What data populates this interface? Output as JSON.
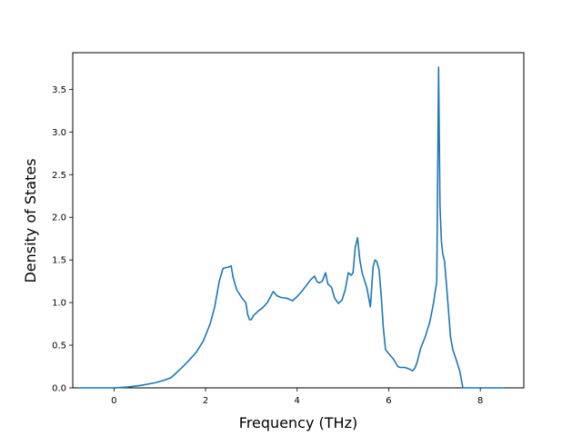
{
  "chart_data": {
    "type": "line",
    "title": "",
    "xlabel": "Frequency (THz)",
    "ylabel": "Density of States",
    "xlim": [
      -0.9,
      8.95
    ],
    "ylim": [
      0.0,
      3.93
    ],
    "xticks": [
      0,
      2,
      4,
      6,
      8
    ],
    "xtick_labels": [
      "0",
      "2",
      "4",
      "6",
      "8"
    ],
    "yticks": [
      0.0,
      0.5,
      1.0,
      1.5,
      2.0,
      2.5,
      3.0,
      3.5
    ],
    "ytick_labels": [
      "0.0",
      "0.5",
      "1.0",
      "1.5",
      "2.0",
      "2.5",
      "3.0",
      "3.5"
    ],
    "grid": false,
    "colors": {
      "series": "#1f77b4",
      "axes": "#000000"
    },
    "series": [
      {
        "x": [
          -0.77,
          0.0,
          0.3,
          0.6,
          0.9,
          1.1,
          1.25,
          1.35,
          1.45,
          1.6,
          1.8,
          1.95,
          2.1,
          2.2,
          2.3,
          2.38,
          2.45,
          2.52,
          2.56,
          2.6,
          2.68,
          2.8,
          2.88,
          2.92,
          2.96,
          3.0,
          3.05,
          3.15,
          3.25,
          3.35,
          3.42,
          3.48,
          3.56,
          3.65,
          3.78,
          3.9,
          4.0,
          4.1,
          4.2,
          4.3,
          4.38,
          4.43,
          4.48,
          4.55,
          4.62,
          4.67,
          4.75,
          4.82,
          4.9,
          4.98,
          5.05,
          5.12,
          5.18,
          5.22,
          5.27,
          5.32,
          5.37,
          5.42,
          5.47,
          5.52,
          5.6,
          5.66,
          5.7,
          5.74,
          5.79,
          5.84,
          5.88,
          5.93,
          6.0,
          6.1,
          6.2,
          6.25,
          6.35,
          6.45,
          6.52,
          6.57,
          6.62,
          6.7,
          6.8,
          6.9,
          6.98,
          7.05,
          7.09,
          7.12,
          7.15,
          7.18,
          7.22,
          7.3,
          7.35,
          7.4,
          7.48,
          7.55,
          7.62,
          7.68,
          7.8,
          8.0,
          8.5
        ],
        "y": [
          0.0,
          0.0,
          0.01,
          0.03,
          0.06,
          0.09,
          0.12,
          0.17,
          0.22,
          0.3,
          0.42,
          0.55,
          0.75,
          0.95,
          1.25,
          1.4,
          1.41,
          1.42,
          1.43,
          1.3,
          1.15,
          1.05,
          1.0,
          0.86,
          0.8,
          0.8,
          0.85,
          0.9,
          0.94,
          1.0,
          1.07,
          1.13,
          1.08,
          1.06,
          1.05,
          1.02,
          1.07,
          1.13,
          1.2,
          1.27,
          1.31,
          1.25,
          1.23,
          1.25,
          1.35,
          1.22,
          1.18,
          1.05,
          0.99,
          1.03,
          1.15,
          1.35,
          1.32,
          1.35,
          1.65,
          1.76,
          1.5,
          1.35,
          1.26,
          1.18,
          0.95,
          1.42,
          1.5,
          1.48,
          1.38,
          1.05,
          0.72,
          0.45,
          0.4,
          0.34,
          0.25,
          0.24,
          0.24,
          0.22,
          0.2,
          0.23,
          0.3,
          0.47,
          0.6,
          0.78,
          1.0,
          1.25,
          3.76,
          2.15,
          1.72,
          1.57,
          1.48,
          0.95,
          0.6,
          0.45,
          0.32,
          0.2,
          0.0,
          0.0,
          0.0,
          0.0,
          0.0
        ]
      }
    ]
  }
}
